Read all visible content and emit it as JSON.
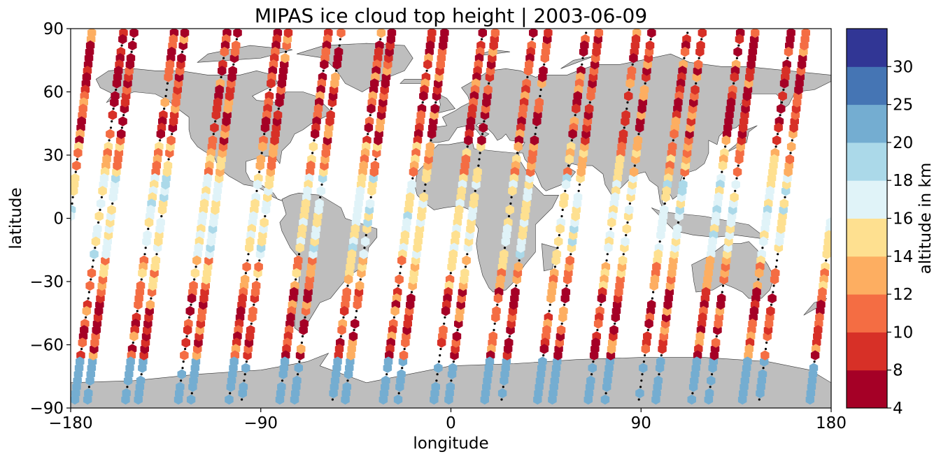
{
  "chart_data": {
    "type": "scatter",
    "title": "MIPAS ice cloud top height | 2003-06-09",
    "xlabel": "longitude",
    "ylabel": "latitude",
    "xlim": [
      -180,
      180
    ],
    "ylim": [
      -90,
      90
    ],
    "xticks": [
      -180,
      -90,
      0,
      90,
      180
    ],
    "yticks": [
      -90,
      -60,
      -30,
      0,
      30,
      60,
      90
    ],
    "xtick_labels": [
      "−180",
      "−90",
      "0",
      "90",
      "180"
    ],
    "ytick_labels": [
      "−90",
      "−60",
      "−30",
      "0",
      "30",
      "60",
      "90"
    ],
    "grid": false,
    "basemap": "world land masses in light gray with coastlines",
    "marker": "hexagon",
    "colorbar": {
      "label": "altitude in km",
      "bounds": [
        4,
        8,
        10,
        12,
        14,
        16,
        18,
        20,
        25,
        30
      ],
      "tick_labels": [
        "4",
        "8",
        "10",
        "12",
        "14",
        "16",
        "18",
        "20",
        "25",
        "30"
      ],
      "colors": [
        "#a50026",
        "#d73027",
        "#f46d43",
        "#fdae61",
        "#fee090",
        "#e0f3f8",
        "#abd9e9",
        "#74add1",
        "#4575b4",
        "#313695"
      ]
    },
    "colors": {
      "land": "#bebebe",
      "coast": "#333333",
      "no_cloud_marker": "#000000"
    },
    "orbit_tracks": [
      {
        "lon_north": -155,
        "lon_south": -178
      },
      {
        "lon_north": -131,
        "lon_south": -154
      },
      {
        "lon_north": -106,
        "lon_south": -129
      },
      {
        "lon_north": -82,
        "lon_south": -105
      },
      {
        "lon_north": -58,
        "lon_south": -81
      },
      {
        "lon_north": -33,
        "lon_south": -56
      },
      {
        "lon_north": -9,
        "lon_south": -32
      },
      {
        "lon_north": 15,
        "lon_south": -8
      },
      {
        "lon_north": 39,
        "lon_south": 16
      },
      {
        "lon_north": 64,
        "lon_south": 41
      },
      {
        "lon_north": 88,
        "lon_south": 65
      },
      {
        "lon_north": 112,
        "lon_south": 89
      },
      {
        "lon_north": 137,
        "lon_south": 114
      },
      {
        "lon_north": 161,
        "lon_south": 138
      },
      {
        "lon_north": -170,
        "lon_south": 170
      }
    ],
    "ascending_tracks": [
      {
        "lon_start": -172,
        "lon_end": -150
      },
      {
        "lon_start": -148,
        "lon_end": -126
      },
      {
        "lon_start": -123,
        "lon_end": -101
      },
      {
        "lon_start": -99,
        "lon_end": -77
      },
      {
        "lon_start": -74,
        "lon_end": -52
      },
      {
        "lon_start": -50,
        "lon_end": -28
      },
      {
        "lon_start": -25,
        "lon_end": -3
      },
      {
        "lon_start": -1,
        "lon_end": 21
      },
      {
        "lon_start": 24,
        "lon_end": 46
      },
      {
        "lon_start": 48,
        "lon_end": 70
      },
      {
        "lon_start": 73,
        "lon_end": 95
      },
      {
        "lon_start": 97,
        "lon_end": 119
      },
      {
        "lon_start": 122,
        "lon_end": 144
      },
      {
        "lon_start": 146,
        "lon_end": 168
      }
    ]
  }
}
